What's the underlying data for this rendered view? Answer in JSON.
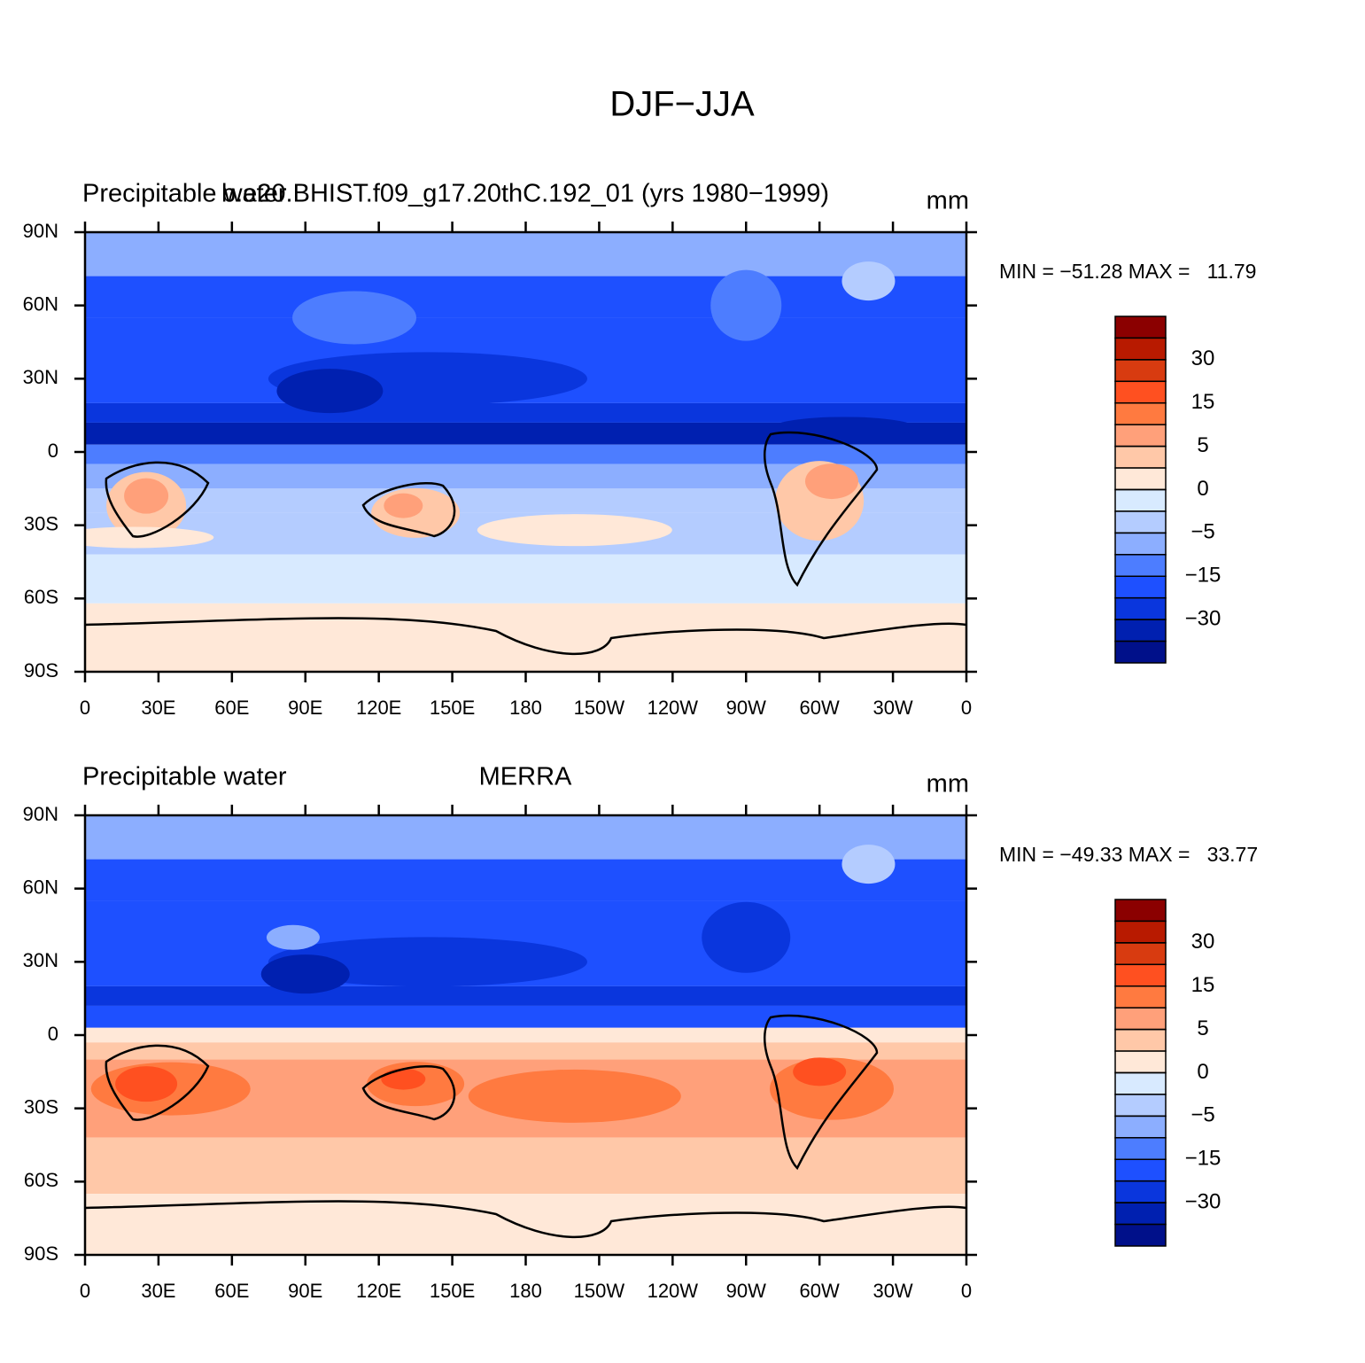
{
  "title": "DJF−JJA",
  "chart_data": [
    {
      "type": "contour_map",
      "left_title": "Precipitable water",
      "center_title": "b.e20.BHIST.f09_g17.20thC.192_01 (yrs 1980−1999)",
      "units": "mm",
      "stats": "MIN = −51.28 MAX =   11.79",
      "field": "model",
      "xlim": [
        0,
        360
      ],
      "ylim": [
        -90,
        90
      ],
      "xticks": [
        0,
        {
          "value": 30,
          "label": "30E"
        },
        {
          "value": 60,
          "label": "60E"
        },
        {
          "value": 90,
          "label": "90E"
        },
        {
          "value": 120,
          "label": "120E"
        },
        {
          "value": 150,
          "label": "150E"
        },
        180,
        {
          "value": 210,
          "label": "150W"
        },
        {
          "value": 240,
          "label": "120W"
        },
        {
          "value": 270,
          "label": "90W"
        },
        {
          "value": 300,
          "label": "60W"
        },
        {
          "value": 330,
          "label": "30W"
        },
        {
          "value": 360,
          "label": "0"
        }
      ],
      "yticks": [
        {
          "value": 90,
          "label": "90N"
        },
        {
          "value": 60,
          "label": "60N"
        },
        {
          "value": 30,
          "label": "30N"
        },
        0,
        {
          "value": -30,
          "label": "30S"
        },
        {
          "value": -60,
          "label": "60S"
        },
        {
          "value": -90,
          "label": "90S"
        }
      ],
      "colorbar": {
        "colors": [
          "#8b0000",
          "#b81a00",
          "#d83b10",
          "#ff5020",
          "#ff7a40",
          "#ffa07a",
          "#ffc8a8",
          "#ffe8d8",
          "#d8eaff",
          "#b4ccff",
          "#8caeff",
          "#4d7dff",
          "#1e50ff",
          "#0a36dd",
          "#0020b0",
          "#00108a"
        ],
        "ticks": [
          30,
          15,
          5,
          0,
          {
            "value": -5,
            "label": "−5"
          },
          {
            "value": -15,
            "label": "−15"
          },
          {
            "value": -30,
            "label": "−30"
          }
        ]
      }
    },
    {
      "type": "contour_map",
      "left_title": "Precipitable water",
      "center_title": "MERRA",
      "units": "mm",
      "stats": "MIN = −49.33 MAX =   33.77",
      "field": "obs",
      "xlim": [
        0,
        360
      ],
      "ylim": [
        -90,
        90
      ],
      "xticks": [
        0,
        {
          "value": 30,
          "label": "30E"
        },
        {
          "value": 60,
          "label": "60E"
        },
        {
          "value": 90,
          "label": "90E"
        },
        {
          "value": 120,
          "label": "120E"
        },
        {
          "value": 150,
          "label": "150E"
        },
        180,
        {
          "value": 210,
          "label": "150W"
        },
        {
          "value": 240,
          "label": "120W"
        },
        {
          "value": 270,
          "label": "90W"
        },
        {
          "value": 300,
          "label": "60W"
        },
        {
          "value": 330,
          "label": "30W"
        },
        {
          "value": 360,
          "label": "0"
        }
      ],
      "yticks": [
        {
          "value": 90,
          "label": "90N"
        },
        {
          "value": 60,
          "label": "60N"
        },
        {
          "value": 30,
          "label": "30N"
        },
        0,
        {
          "value": -30,
          "label": "30S"
        },
        {
          "value": -60,
          "label": "60S"
        },
        {
          "value": -90,
          "label": "90S"
        }
      ],
      "colorbar": {
        "colors": [
          "#8b0000",
          "#b81a00",
          "#d83b10",
          "#ff5020",
          "#ff7a40",
          "#ffa07a",
          "#ffc8a8",
          "#ffe8d8",
          "#d8eaff",
          "#b4ccff",
          "#8caeff",
          "#4d7dff",
          "#1e50ff",
          "#0a36dd",
          "#0020b0",
          "#00108a"
        ],
        "ticks": [
          30,
          15,
          5,
          0,
          {
            "value": -5,
            "label": "−5"
          },
          {
            "value": -15,
            "label": "−15"
          },
          {
            "value": -30,
            "label": "−30"
          }
        ]
      }
    }
  ]
}
